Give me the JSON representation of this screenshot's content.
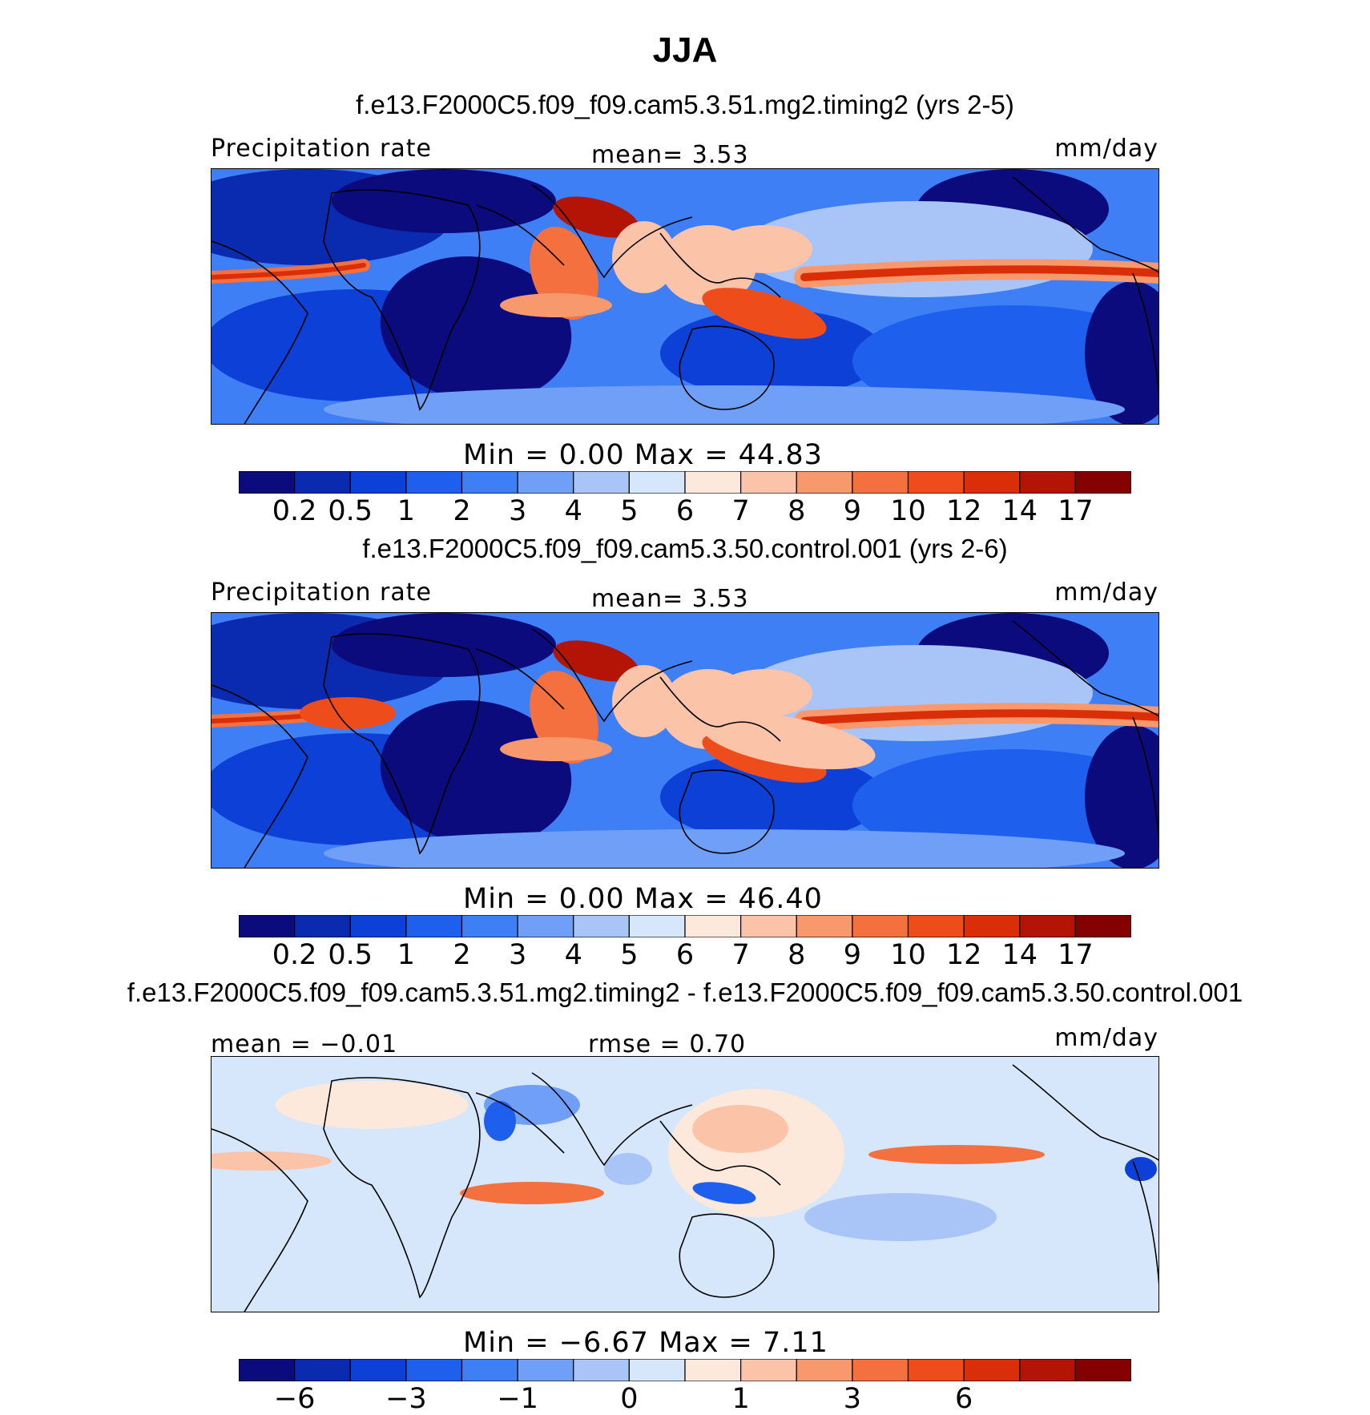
{
  "title": "JJA",
  "colors": {
    "precip_scale": [
      "#0b0b7d",
      "#0a2ab0",
      "#0c40d6",
      "#1f5fee",
      "#3f7ff6",
      "#6f9ff6",
      "#a9c5f7",
      "#d6e7fb",
      "#fde9dc",
      "#fbc4a9",
      "#f8996d",
      "#f4703e",
      "#ee4d1b",
      "#da2e08",
      "#b31405",
      "#850000"
    ],
    "diff_scale": [
      "#0b0b7d",
      "#0a2ab0",
      "#0c40d6",
      "#1f5fee",
      "#3f7ff6",
      "#6f9ff6",
      "#a9c5f7",
      "#d6e7fb",
      "#fde9dc",
      "#fbc4a9",
      "#f8996d",
      "#f4703e",
      "#ee4d1b",
      "#da2e08",
      "#b31405",
      "#850000"
    ],
    "land_outline": "#000000"
  },
  "panels": [
    {
      "case": "f.e13.F2000C5.f09_f09.cam5.3.51.mg2.timing2 (yrs 2-5)",
      "left_label": "Precipitation  rate",
      "center_label": "mean=    3.53",
      "right_label": "mm/day",
      "minmax": "Min  =     0.00  Max  =    44.83",
      "ticks": [
        "0.2",
        "0.5",
        "1",
        "2",
        "3",
        "4",
        "5",
        "6",
        "7",
        "8",
        "9",
        "10",
        "12",
        "14",
        "17"
      ]
    },
    {
      "case": "f.e13.F2000C5.f09_f09.cam5.3.50.control.001 (yrs 2-6)",
      "left_label": "Precipitation  rate",
      "center_label": "mean=    3.53",
      "right_label": "mm/day",
      "minmax": "Min  =     0.00  Max  =    46.40",
      "ticks": [
        "0.2",
        "0.5",
        "1",
        "2",
        "3",
        "4",
        "5",
        "6",
        "7",
        "8",
        "9",
        "10",
        "12",
        "14",
        "17"
      ]
    },
    {
      "case": "f.e13.F2000C5.f09_f09.cam5.3.51.mg2.timing2 - f.e13.F2000C5.f09_f09.cam5.3.50.control.001",
      "left_label": "mean  =   −0.01",
      "center_label": "rmse  =     0.70",
      "right_label": "mm/day",
      "minmax": "Min  =    −6.67  Max  =     7.11",
      "ticks": [
        "−6",
        "",
        "−3",
        "",
        "−1",
        "",
        "0",
        "",
        "1",
        "",
        "3",
        "",
        "6",
        ""
      ]
    }
  ],
  "chart_data": [
    {
      "type": "heatmap",
      "title": "JJA",
      "subtitle": "f.e13.F2000C5.f09_f09.cam5.3.51.mg2.timing2 (yrs 2-5)",
      "variable": "Precipitation  rate",
      "units": "mm/day",
      "mean": 3.53,
      "min": 0.0,
      "max": 44.83,
      "contour_levels": [
        0.2,
        0.5,
        1,
        2,
        3,
        4,
        5,
        6,
        7,
        8,
        9,
        10,
        12,
        14,
        17
      ]
    },
    {
      "type": "heatmap",
      "subtitle": "f.e13.F2000C5.f09_f09.cam5.3.50.control.001 (yrs 2-6)",
      "variable": "Precipitation  rate",
      "units": "mm/day",
      "mean": 3.53,
      "min": 0.0,
      "max": 46.4,
      "contour_levels": [
        0.2,
        0.5,
        1,
        2,
        3,
        4,
        5,
        6,
        7,
        8,
        9,
        10,
        12,
        14,
        17
      ]
    },
    {
      "type": "heatmap",
      "subtitle": "f.e13.F2000C5.f09_f09.cam5.3.51.mg2.timing2 - f.e13.F2000C5.f09_f09.cam5.3.50.control.001",
      "units": "mm/day",
      "mean": -0.01,
      "rmse": 0.7,
      "min": -6.67,
      "max": 7.11,
      "contour_levels": [
        -8,
        -6,
        -4,
        -3,
        -2,
        -1,
        -0.5,
        0,
        0.5,
        1,
        2,
        3,
        4,
        6,
        8
      ],
      "labeled_levels": [
        -6,
        -3,
        -1,
        0,
        1,
        3,
        6
      ]
    }
  ]
}
